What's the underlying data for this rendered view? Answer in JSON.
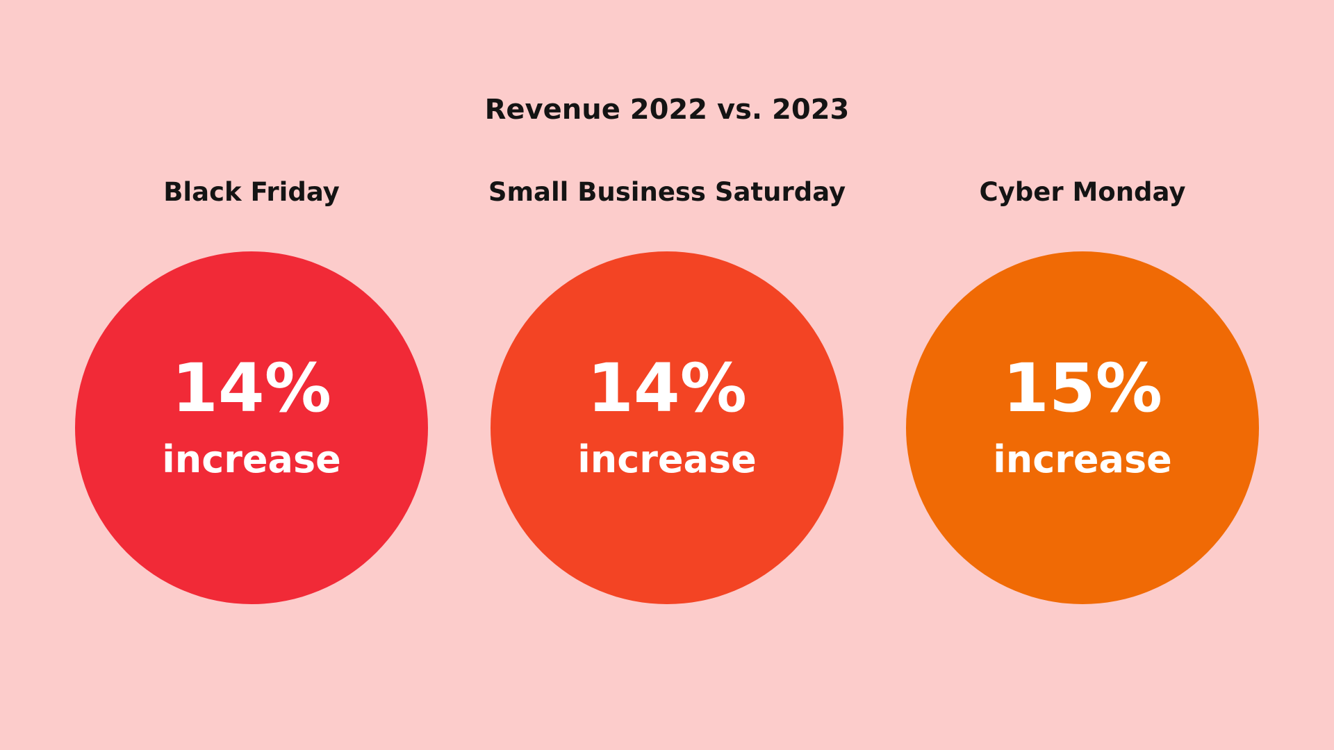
{
  "title": "Revenue 2022 vs. 2023",
  "stats": [
    {
      "label": "Black Friday",
      "value": "14%",
      "caption": "increase",
      "color": "#f12a37"
    },
    {
      "label": "Small Business Saturday",
      "value": "14%",
      "caption": "increase",
      "color": "#f34424"
    },
    {
      "label": "Cyber Monday",
      "value": "15%",
      "caption": "increase",
      "color": "#f06a05"
    }
  ]
}
